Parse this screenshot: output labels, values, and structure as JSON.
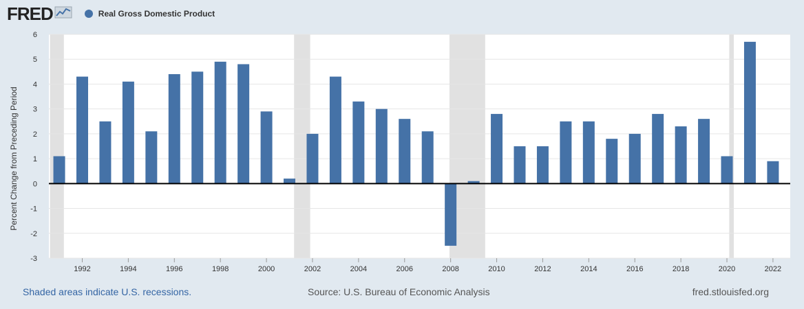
{
  "header": {
    "logo_text": "FRED",
    "logo_icon": "fred-line-chart-icon",
    "legend_label": "Real Gross Domestic Product",
    "legend_color": "#4572a7"
  },
  "footer": {
    "recession_note": "Shaded areas indicate U.S. recessions.",
    "source": "Source: U.S. Bureau of Economic Analysis",
    "site": "fred.stlouisfed.org"
  },
  "chart_data": {
    "type": "bar",
    "title": "",
    "xlabel": "",
    "ylabel": "Percent Change from Preceding Period",
    "ylim": [
      -3,
      6
    ],
    "yticks": [
      -3,
      -2,
      -1,
      0,
      1,
      2,
      3,
      4,
      5,
      6
    ],
    "xticks": [
      1992,
      1994,
      1996,
      1998,
      2000,
      2002,
      2004,
      2006,
      2008,
      2010,
      2012,
      2014,
      2016,
      2018,
      2020,
      2022
    ],
    "grid": true,
    "legend": "top-left",
    "series": [
      {
        "name": "Real Gross Domestic Product",
        "color": "#4572a7",
        "x": [
          1991,
          1992,
          1993,
          1994,
          1995,
          1996,
          1997,
          1998,
          1999,
          2000,
          2001,
          2002,
          2003,
          2004,
          2005,
          2006,
          2007,
          2008,
          2009,
          2010,
          2011,
          2012,
          2013,
          2014,
          2015,
          2016,
          2017,
          2018,
          2019,
          2020,
          2021,
          2022
        ],
        "values": [
          1.1,
          4.3,
          2.5,
          4.1,
          2.1,
          4.4,
          4.5,
          4.9,
          4.8,
          2.9,
          0.2,
          2.0,
          4.3,
          3.3,
          3.0,
          2.6,
          2.1,
          -2.5,
          0.1,
          2.8,
          1.5,
          1.5,
          2.5,
          2.5,
          1.8,
          2.0,
          2.8,
          2.3,
          2.6,
          1.1,
          5.7,
          0.9
        ]
      }
    ],
    "recessions": [
      [
        1990.6,
        1991.2
      ],
      [
        2001.2,
        2001.9
      ],
      [
        2007.95,
        2009.5
      ],
      [
        2020.1,
        2020.3
      ]
    ],
    "recession_color": "#e1e1e1",
    "plot_background": "#ffffff",
    "page_background": "#e1e9f0"
  }
}
